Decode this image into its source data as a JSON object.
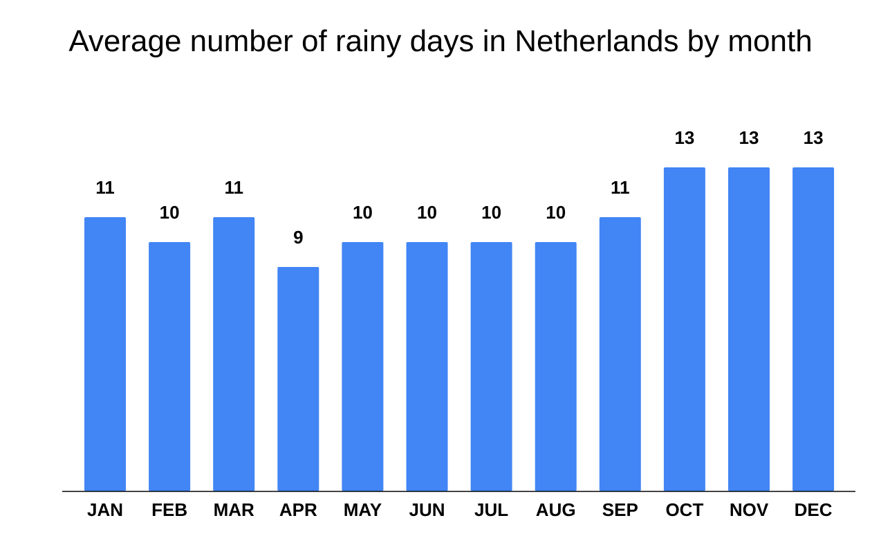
{
  "chart_data": {
    "type": "bar",
    "title": "Average number of rainy days in Netherlands by month",
    "xlabel": "",
    "ylabel": "",
    "categories": [
      "JAN",
      "FEB",
      "MAR",
      "APR",
      "MAY",
      "JUN",
      "JUL",
      "AUG",
      "SEP",
      "OCT",
      "NOV",
      "DEC"
    ],
    "values": [
      11,
      10,
      11,
      9,
      10,
      10,
      10,
      10,
      11,
      13,
      13,
      13
    ],
    "data_labels": [
      "11",
      "10",
      "11",
      "9",
      "10",
      "10",
      "10",
      "10",
      "11",
      "13",
      "13",
      "13"
    ],
    "ylim": [
      0,
      13
    ],
    "grid": false,
    "legend": "none",
    "bar_color": "#4285f4",
    "baseline_color": "#000000"
  }
}
